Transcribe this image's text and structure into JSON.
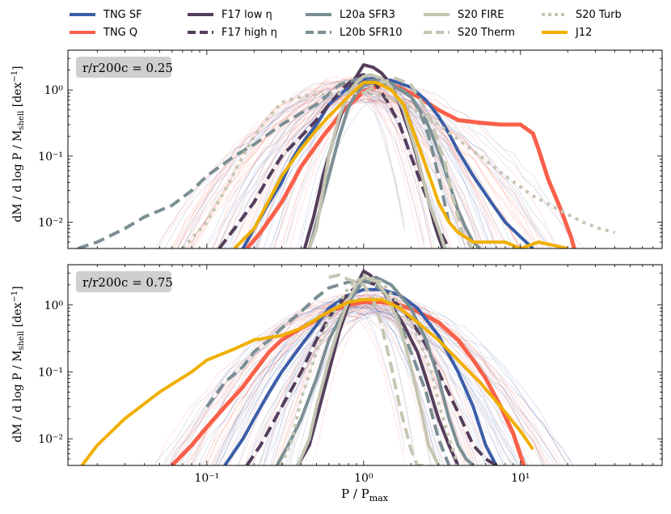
{
  "chart_data": {
    "type": "line",
    "xlabel": "P / P_max",
    "ylabel": "dM / d log P / M_shell [dex^-1]",
    "xscale": "log",
    "yscale": "log",
    "xlim": [
      0.013,
      80
    ],
    "ylim": [
      0.004,
      4
    ],
    "x_ticks": [
      0.1,
      1,
      10
    ],
    "x_tick_labels": [
      "10⁻¹",
      "10⁰",
      "10¹"
    ],
    "y_ticks": [
      0.01,
      0.1,
      1
    ],
    "y_tick_labels": [
      "10⁻²",
      "10⁻¹",
      "10⁰"
    ],
    "legend": [
      {
        "name": "TNG SF",
        "color": "#3b5ea8",
        "dash": "solid"
      },
      {
        "name": "TNG Q",
        "color": "#f9604a",
        "dash": "solid"
      },
      {
        "name": "F17 low η",
        "color": "#553e5c",
        "dash": "solid"
      },
      {
        "name": "F17 high η",
        "color": "#553e5c",
        "dash": "dashed"
      },
      {
        "name": "L20a SFR3",
        "color": "#7b8f94",
        "dash": "solid"
      },
      {
        "name": "L20b SFR10",
        "color": "#7b8f94",
        "dash": "dashed"
      },
      {
        "name": "S20 FIRE",
        "color": "#c4c6b2",
        "dash": "solid"
      },
      {
        "name": "S20 Therm",
        "color": "#c4c6b2",
        "dash": "dashed"
      },
      {
        "name": "S20 Turb",
        "color": "#c4c6b2",
        "dash": "dotted"
      },
      {
        "name": "J12",
        "color": "#f0b000",
        "dash": "solid"
      }
    ],
    "panels": [
      {
        "label": "r/r200c = 0.25",
        "series": [
          {
            "name": "TNG Q",
            "x": [
              0.18,
              0.22,
              0.3,
              0.4,
              0.55,
              0.75,
              1.0,
              1.3,
              1.7,
              2.2,
              3.0,
              4.0,
              5.5,
              7.5,
              10,
              12,
              13,
              15,
              18,
              21,
              22
            ],
            "y": [
              0.004,
              0.007,
              0.02,
              0.07,
              0.2,
              0.5,
              0.95,
              1.2,
              1.1,
              0.8,
              0.5,
              0.35,
              0.32,
              0.3,
              0.3,
              0.22,
              0.13,
              0.045,
              0.016,
              0.006,
              0.004
            ]
          },
          {
            "name": "TNG SF",
            "x": [
              0.17,
              0.2,
              0.25,
              0.3,
              0.35,
              0.4,
              0.5,
              0.6,
              0.8,
              1.0,
              1.2,
              1.5,
              2.0,
              2.5,
              3.0,
              3.5,
              4.0,
              5.0,
              6.5,
              8.0,
              10,
              12
            ],
            "y": [
              0.004,
              0.008,
              0.02,
              0.04,
              0.09,
              0.15,
              0.3,
              0.6,
              1.1,
              1.45,
              1.5,
              1.4,
              1.1,
              0.7,
              0.4,
              0.22,
              0.12,
              0.05,
              0.02,
              0.01,
              0.006,
              0.004
            ]
          },
          {
            "name": "F17 low η",
            "x": [
              0.42,
              0.48,
              0.55,
              0.65,
              0.75,
              0.85,
              1.0,
              1.15,
              1.3,
              1.5,
              1.7,
              2.0,
              2.2,
              2.5,
              2.8,
              3.0,
              3.2
            ],
            "y": [
              0.004,
              0.012,
              0.05,
              0.2,
              0.6,
              1.3,
              2.4,
              2.2,
              1.8,
              1.2,
              0.6,
              0.2,
              0.09,
              0.03,
              0.01,
              0.006,
              0.004
            ]
          },
          {
            "name": "F17 high η",
            "x": [
              0.12,
              0.15,
              0.2,
              0.25,
              0.3,
              0.4,
              0.5,
              0.6,
              0.75,
              0.9,
              1.0,
              1.2,
              1.4,
              1.7,
              2.0,
              2.5,
              3.0,
              3.5
            ],
            "y": [
              0.004,
              0.008,
              0.02,
              0.05,
              0.1,
              0.2,
              0.35,
              0.6,
              1.1,
              1.6,
              1.7,
              1.2,
              0.7,
              0.3,
              0.1,
              0.025,
              0.008,
              0.004
            ]
          },
          {
            "name": "L20a SFR3",
            "x": [
              0.45,
              0.5,
              0.6,
              0.7,
              0.8,
              0.9,
              1.0,
              1.2,
              1.5,
              2.0,
              2.5,
              3.0,
              3.5,
              4.0,
              4.5,
              5.0,
              5.5
            ],
            "y": [
              0.004,
              0.01,
              0.05,
              0.2,
              0.55,
              0.9,
              1.2,
              1.3,
              1.2,
              0.8,
              0.35,
              0.12,
              0.04,
              0.015,
              0.008,
              0.005,
              0.004
            ]
          },
          {
            "name": "L20b SFR10",
            "x": [
              0.015,
              0.02,
              0.03,
              0.04,
              0.06,
              0.08,
              0.1,
              0.15,
              0.2,
              0.3,
              0.4,
              0.5,
              0.7,
              0.9,
              1.0,
              1.3,
              1.6,
              2.0,
              2.3,
              2.6,
              3.0,
              3.5
            ],
            "y": [
              0.004,
              0.005,
              0.008,
              0.012,
              0.018,
              0.03,
              0.05,
              0.1,
              0.15,
              0.3,
              0.45,
              0.6,
              1.2,
              1.45,
              1.4,
              1.4,
              1.2,
              0.8,
              0.45,
              0.2,
              0.05,
              0.01
            ]
          },
          {
            "name": "S20 FIRE",
            "x": [
              0.45,
              0.5,
              0.55,
              0.6,
              0.7,
              0.8,
              0.9,
              1.0,
              1.1,
              1.3,
              1.5,
              1.8,
              2.2,
              2.6,
              3.0,
              3.3
            ],
            "y": [
              0.004,
              0.008,
              0.03,
              0.1,
              0.4,
              0.9,
              1.3,
              1.6,
              1.7,
              1.5,
              1.1,
              0.5,
              0.1,
              0.02,
              0.008,
              0.004
            ]
          },
          {
            "name": "S20 Therm",
            "x": [
              1.0,
              1.3,
              1.6,
              2.0,
              2.3,
              2.7,
              3.0,
              3.3,
              3.6,
              4.0,
              4.3,
              5.0
            ],
            "y": [
              0.9,
              1.3,
              1.5,
              1.2,
              0.7,
              0.35,
              0.15,
              0.08,
              0.03,
              0.012,
              0.006,
              0.004
            ]
          },
          {
            "name": "S20 Turb",
            "x": [
              0.07,
              0.1,
              0.13,
              0.17,
              0.2,
              0.25,
              0.3,
              0.4,
              0.5,
              0.6,
              0.8,
              1.0,
              1.3,
              2.0,
              3.0,
              5.0,
              8.0,
              12,
              18,
              25,
              32,
              40
            ],
            "y": [
              0.004,
              0.01,
              0.03,
              0.1,
              0.2,
              0.4,
              0.65,
              0.8,
              0.85,
              0.85,
              0.9,
              0.9,
              0.85,
              0.55,
              0.3,
              0.12,
              0.05,
              0.025,
              0.015,
              0.01,
              0.008,
              0.007
            ]
          },
          {
            "name": "J12",
            "x": [
              0.15,
              0.2,
              0.3,
              0.4,
              0.5,
              0.6,
              0.8,
              1.0,
              1.2,
              1.5,
              1.8,
              2.0,
              2.5,
              3.0,
              3.5,
              4.0,
              5.0,
              6.0,
              8.0,
              10,
              13,
              16,
              20
            ],
            "y": [
              0.004,
              0.008,
              0.05,
              0.13,
              0.25,
              0.4,
              0.8,
              1.3,
              1.3,
              1.0,
              0.6,
              0.3,
              0.07,
              0.02,
              0.01,
              0.007,
              0.005,
              0.005,
              0.005,
              0.004,
              0.005,
              0.0045,
              0.004
            ]
          }
        ]
      },
      {
        "label": "r/r200c = 0.75",
        "series": [
          {
            "name": "TNG Q",
            "x": [
              0.06,
              0.08,
              0.1,
              0.13,
              0.17,
              0.2,
              0.25,
              0.3,
              0.4,
              0.5,
              0.6,
              0.8,
              1.0,
              1.3,
              1.7,
              2.2,
              3.0,
              4.0,
              5.0,
              6.0,
              7.5,
              9.0,
              10.5
            ],
            "y": [
              0.004,
              0.008,
              0.015,
              0.03,
              0.06,
              0.1,
              0.2,
              0.3,
              0.45,
              0.6,
              0.8,
              1.0,
              1.1,
              1.1,
              1.0,
              0.8,
              0.55,
              0.3,
              0.15,
              0.08,
              0.03,
              0.012,
              0.004
            ]
          },
          {
            "name": "TNG SF",
            "x": [
              0.13,
              0.17,
              0.2,
              0.25,
              0.3,
              0.4,
              0.5,
              0.6,
              0.8,
              1.0,
              1.3,
              1.7,
              2.2,
              3.0,
              4.0,
              5.0,
              6.0,
              7.0
            ],
            "y": [
              0.004,
              0.01,
              0.02,
              0.05,
              0.1,
              0.25,
              0.5,
              0.9,
              1.4,
              1.7,
              1.7,
              1.4,
              0.9,
              0.35,
              0.1,
              0.03,
              0.008,
              0.004
            ]
          },
          {
            "name": "F17 low η",
            "x": [
              0.38,
              0.45,
              0.5,
              0.6,
              0.7,
              0.8,
              0.9,
              1.0,
              1.1,
              1.3,
              1.5,
              1.8,
              2.2,
              2.5,
              3.0,
              3.5,
              4.0
            ],
            "y": [
              0.004,
              0.008,
              0.02,
              0.1,
              0.4,
              1.0,
              2.0,
              3.2,
              2.8,
              1.8,
              1.0,
              0.5,
              0.2,
              0.08,
              0.02,
              0.008,
              0.004
            ]
          },
          {
            "name": "F17 high η",
            "x": [
              0.18,
              0.22,
              0.3,
              0.4,
              0.5,
              0.6,
              0.8,
              1.0,
              1.2,
              1.5,
              2.0,
              2.5,
              3.0,
              4.0,
              5.0,
              6.0,
              7.0
            ],
            "y": [
              0.004,
              0.008,
              0.03,
              0.1,
              0.3,
              0.65,
              1.5,
              2.3,
              2.0,
              1.3,
              0.6,
              0.25,
              0.1,
              0.025,
              0.008,
              0.005,
              0.004
            ]
          },
          {
            "name": "L20a SFR3",
            "x": [
              0.28,
              0.33,
              0.4,
              0.5,
              0.6,
              0.8,
              1.0,
              1.2,
              1.5,
              2.0,
              2.5,
              3.0,
              3.5,
              4.0,
              4.5,
              5.0
            ],
            "y": [
              0.004,
              0.008,
              0.02,
              0.08,
              0.3,
              1.1,
              2.3,
              2.6,
              2.0,
              0.9,
              0.3,
              0.08,
              0.02,
              0.008,
              0.005,
              0.004
            ]
          },
          {
            "name": "L20b SFR10",
            "x": [
              0.1,
              0.13,
              0.17,
              0.2,
              0.25,
              0.3,
              0.4,
              0.5,
              0.6,
              0.8,
              1.0,
              1.3,
              1.6,
              2.0,
              2.5,
              3.0,
              3.5
            ],
            "y": [
              0.03,
              0.07,
              0.12,
              0.2,
              0.3,
              0.45,
              0.8,
              1.3,
              1.8,
              2.2,
              2.4,
              1.7,
              0.8,
              0.2,
              0.05,
              0.01,
              0.004
            ]
          },
          {
            "name": "S20 FIRE",
            "x": [
              0.38,
              0.45,
              0.5,
              0.6,
              0.7,
              0.8,
              0.9,
              1.0,
              1.2,
              1.4,
              1.7,
              2.0,
              2.3,
              2.6,
              3.0
            ],
            "y": [
              0.004,
              0.01,
              0.03,
              0.15,
              0.5,
              1.2,
              2.0,
              2.6,
              2.3,
              1.4,
              0.5,
              0.12,
              0.03,
              0.008,
              0.004
            ]
          },
          {
            "name": "S20 Therm",
            "x": [
              0.6,
              0.7,
              0.8,
              0.9,
              1.0,
              1.15,
              1.3,
              1.5,
              1.7,
              2.0,
              2.2,
              2.5
            ],
            "y": [
              2.6,
              2.8,
              2.4,
              2.2,
              2.0,
              1.2,
              0.5,
              0.12,
              0.03,
              0.007,
              0.004,
              0.004
            ]
          },
          {
            "name": "S20 Turb",
            "x": [
              0.3,
              0.35,
              0.4,
              0.5,
              0.6,
              0.8,
              1.0,
              1.3,
              1.7,
              2.2,
              2.7,
              3.0,
              3.5,
              4.0
            ],
            "y": [
              0.004,
              0.01,
              0.04,
              0.2,
              0.6,
              1.8,
              2.8,
              2.2,
              1.0,
              0.35,
              0.1,
              0.035,
              0.01,
              0.004
            ]
          },
          {
            "name": "J12",
            "x": [
              0.016,
              0.02,
              0.03,
              0.05,
              0.08,
              0.1,
              0.15,
              0.2,
              0.3,
              0.4,
              0.6,
              0.8,
              1.0,
              1.3,
              1.7,
              2.2,
              3.0,
              4.0,
              5.5,
              7.5,
              10,
              12
            ],
            "y": [
              0.004,
              0.008,
              0.02,
              0.05,
              0.1,
              0.15,
              0.22,
              0.3,
              0.35,
              0.45,
              0.8,
              1.1,
              1.2,
              1.2,
              0.9,
              0.55,
              0.3,
              0.15,
              0.07,
              0.03,
              0.013,
              0.007
            ]
          }
        ]
      }
    ]
  }
}
